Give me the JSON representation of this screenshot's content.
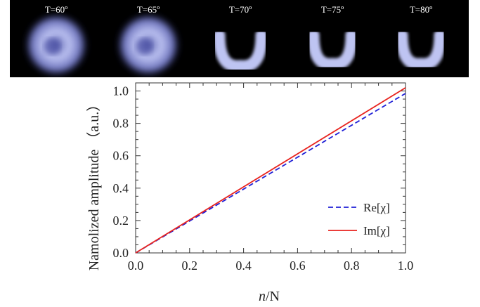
{
  "image_strip": {
    "panels": [
      {
        "label": "T=60º",
        "shape": "disk"
      },
      {
        "label": "T=65º",
        "shape": "disk"
      },
      {
        "label": "T=70º",
        "shape": "horseshoe"
      },
      {
        "label": "T=75º",
        "shape": "horseshoe"
      },
      {
        "label": "T=80º",
        "shape": "horseshoe"
      }
    ],
    "background_color": "#000000",
    "beam_color": "#b8c0ff"
  },
  "chart_data": {
    "type": "line",
    "title": "",
    "xlabel": "n/N",
    "xlabel_italic_part": "n",
    "xlabel_rest": "/N",
    "ylabel": "Namolized amplitude （a.u.）",
    "xlim": [
      0,
      1
    ],
    "ylim": [
      0,
      1.05
    ],
    "xticks": [
      0.0,
      0.2,
      0.4,
      0.6,
      0.8,
      1.0
    ],
    "yticks": [
      0.0,
      0.2,
      0.4,
      0.6,
      0.8,
      1.0
    ],
    "xtick_labels": [
      "0.0",
      "0.2",
      "0.4",
      "0.6",
      "0.8",
      "1.0"
    ],
    "ytick_labels": [
      "0.0",
      "0.2",
      "0.4",
      "0.6",
      "0.8",
      "1.0"
    ],
    "grid": false,
    "legend_position": "bottom-right",
    "series": [
      {
        "name": "Re[χ]",
        "x": [
          0.0,
          1.0
        ],
        "y": [
          0.0,
          0.985
        ],
        "color": "#1f1fd6",
        "dash": "dashed"
      },
      {
        "name": "Im[χ]",
        "x": [
          0.0,
          1.0
        ],
        "y": [
          0.0,
          1.02
        ],
        "color": "#e8231e",
        "dash": "solid"
      }
    ]
  }
}
